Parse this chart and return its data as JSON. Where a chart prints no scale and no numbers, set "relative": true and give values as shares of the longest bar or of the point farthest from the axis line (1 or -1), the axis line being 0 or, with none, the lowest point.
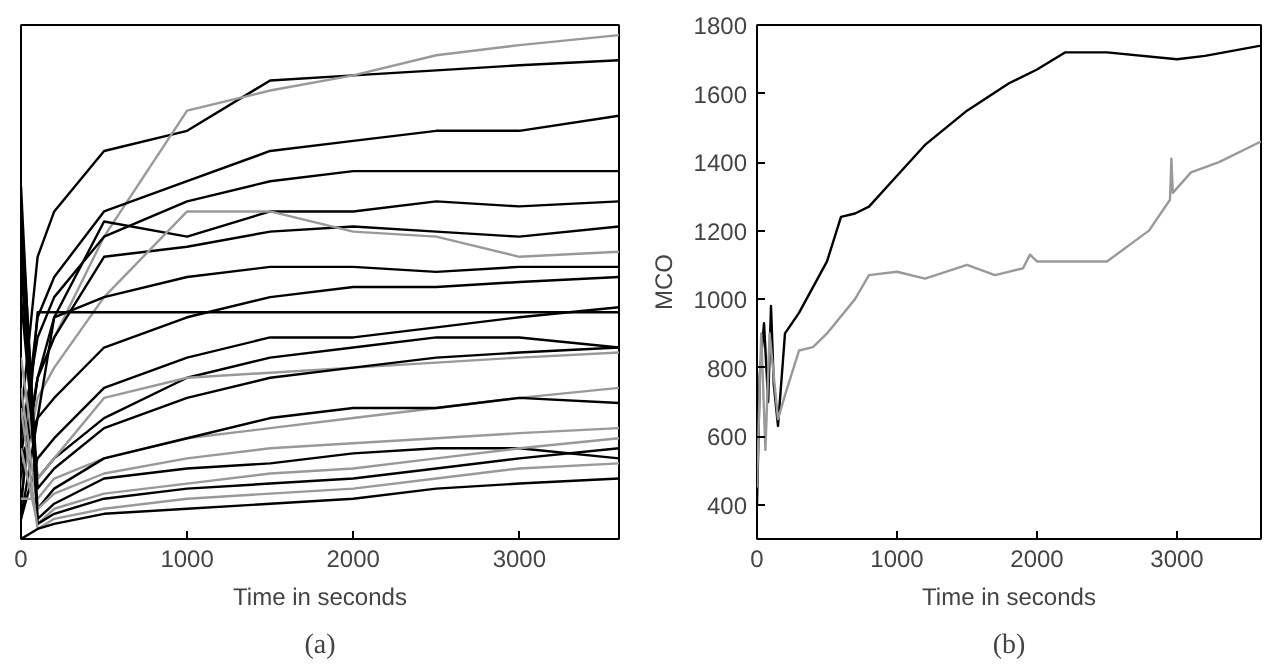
{
  "chart_data": [
    {
      "type": "line",
      "relative": true,
      "xlabel": "Time in seconds",
      "xlim": [
        0,
        3600
      ],
      "xticks": [
        0,
        1000,
        2000,
        3000
      ],
      "annotations": [
        "(a)"
      ],
      "grid": false,
      "x": [
        0,
        100,
        200,
        500,
        1000,
        1500,
        2000,
        2500,
        3000,
        3600
      ],
      "series": [
        {
          "color": "#000000",
          "values": [
            0.24,
            0.56,
            0.65,
            0.77,
            0.81,
            0.91,
            0.92,
            0.93,
            0.94,
            0.95
          ]
        },
        {
          "color": "#999999",
          "values": [
            0.12,
            0.32,
            0.4,
            0.6,
            0.85,
            0.89,
            0.92,
            0.96,
            0.98,
            1.0
          ]
        },
        {
          "color": "#000000",
          "values": [
            0.16,
            0.44,
            0.52,
            0.65,
            0.71,
            0.77,
            0.79,
            0.81,
            0.81,
            0.84
          ]
        },
        {
          "color": "#000000",
          "values": [
            0.2,
            0.4,
            0.48,
            0.6,
            0.67,
            0.71,
            0.73,
            0.73,
            0.73,
            0.73
          ]
        },
        {
          "color": "#000000",
          "values": [
            0.12,
            0.32,
            0.44,
            0.63,
            0.6,
            0.65,
            0.65,
            0.67,
            0.66,
            0.67
          ]
        },
        {
          "color": "#000000",
          "values": [
            0.08,
            0.32,
            0.4,
            0.56,
            0.58,
            0.61,
            0.62,
            0.61,
            0.6,
            0.62
          ]
        },
        {
          "color": "#999999",
          "values": [
            0.1,
            0.28,
            0.34,
            0.48,
            0.65,
            0.65,
            0.61,
            0.6,
            0.56,
            0.57
          ]
        },
        {
          "color": "#000000",
          "values": [
            0.16,
            0.24,
            0.44,
            0.48,
            0.52,
            0.54,
            0.54,
            0.53,
            0.54,
            0.54
          ]
        },
        {
          "color": "#000000",
          "values": [
            0.06,
            0.45,
            0.45,
            0.45,
            0.45,
            0.45,
            0.45,
            0.45,
            0.45,
            0.45
          ]
        },
        {
          "color": "#000000",
          "values": [
            0.04,
            0.24,
            0.28,
            0.38,
            0.44,
            0.48,
            0.5,
            0.5,
            0.51,
            0.52
          ]
        },
        {
          "color": "#000000",
          "values": [
            0.04,
            0.16,
            0.2,
            0.3,
            0.36,
            0.4,
            0.4,
            0.42,
            0.44,
            0.46
          ]
        },
        {
          "color": "#000000",
          "values": [
            0.48,
            0.12,
            0.16,
            0.24,
            0.32,
            0.36,
            0.38,
            0.4,
            0.4,
            0.38
          ]
        },
        {
          "color": "#999999",
          "values": [
            0.36,
            0.12,
            0.16,
            0.28,
            0.32,
            0.33,
            0.34,
            0.35,
            0.36,
            0.37
          ]
        },
        {
          "color": "#000000",
          "values": [
            0.66,
            0.1,
            0.14,
            0.22,
            0.28,
            0.32,
            0.34,
            0.36,
            0.37,
            0.38
          ]
        },
        {
          "color": "#999999",
          "values": [
            0.08,
            0.08,
            0.12,
            0.16,
            0.2,
            0.22,
            0.24,
            0.26,
            0.28,
            0.3
          ]
        },
        {
          "color": "#000000",
          "values": [
            0.55,
            0.06,
            0.1,
            0.16,
            0.2,
            0.24,
            0.26,
            0.26,
            0.28,
            0.27
          ]
        },
        {
          "color": "#999999",
          "values": [
            0.3,
            0.06,
            0.09,
            0.13,
            0.16,
            0.18,
            0.19,
            0.2,
            0.21,
            0.22
          ]
        },
        {
          "color": "#000000",
          "values": [
            0.7,
            0.04,
            0.07,
            0.12,
            0.14,
            0.15,
            0.17,
            0.18,
            0.18,
            0.16
          ]
        },
        {
          "color": "#999999",
          "values": [
            0.18,
            0.03,
            0.06,
            0.09,
            0.11,
            0.13,
            0.14,
            0.16,
            0.18,
            0.2
          ]
        },
        {
          "color": "#000000",
          "values": [
            0.62,
            0.03,
            0.05,
            0.08,
            0.1,
            0.11,
            0.12,
            0.14,
            0.16,
            0.18
          ]
        },
        {
          "color": "#999999",
          "values": [
            0.26,
            0.02,
            0.04,
            0.06,
            0.08,
            0.09,
            0.1,
            0.12,
            0.14,
            0.15
          ]
        },
        {
          "color": "#000000",
          "values": [
            0.0,
            0.02,
            0.03,
            0.05,
            0.06,
            0.07,
            0.08,
            0.1,
            0.11,
            0.12
          ]
        }
      ]
    },
    {
      "type": "line",
      "xlabel": "Time in seconds",
      "ylabel": "MCO",
      "xlim": [
        0,
        3600
      ],
      "ylim": [
        300,
        1800
      ],
      "xticks": [
        0,
        1000,
        2000,
        3000
      ],
      "yticks": [
        400,
        600,
        800,
        1000,
        1200,
        1400,
        1600,
        1800
      ],
      "annotations": [
        "(b)"
      ],
      "grid": false,
      "series": [
        {
          "color": "#000000",
          "x": [
            0,
            20,
            50,
            80,
            100,
            120,
            150,
            200,
            300,
            500,
            600,
            700,
            800,
            1000,
            1200,
            1500,
            1800,
            2000,
            2200,
            2500,
            3000,
            3200,
            3600
          ],
          "values": [
            400,
            780,
            930,
            700,
            980,
            750,
            630,
            900,
            960,
            1110,
            1240,
            1250,
            1270,
            1360,
            1450,
            1550,
            1630,
            1670,
            1720,
            1720,
            1700,
            1710,
            1740
          ]
        },
        {
          "color": "#999999",
          "x": [
            0,
            30,
            60,
            90,
            150,
            200,
            300,
            400,
            500,
            700,
            800,
            1000,
            1200,
            1500,
            1700,
            1900,
            1950,
            2000,
            2300,
            2500,
            2800,
            2950,
            2960,
            2970,
            3100,
            3300,
            3600
          ],
          "values": [
            450,
            900,
            560,
            900,
            650,
            720,
            850,
            860,
            900,
            1000,
            1070,
            1080,
            1060,
            1100,
            1070,
            1090,
            1130,
            1110,
            1110,
            1110,
            1200,
            1290,
            1410,
            1310,
            1370,
            1400,
            1460
          ]
        }
      ]
    }
  ]
}
